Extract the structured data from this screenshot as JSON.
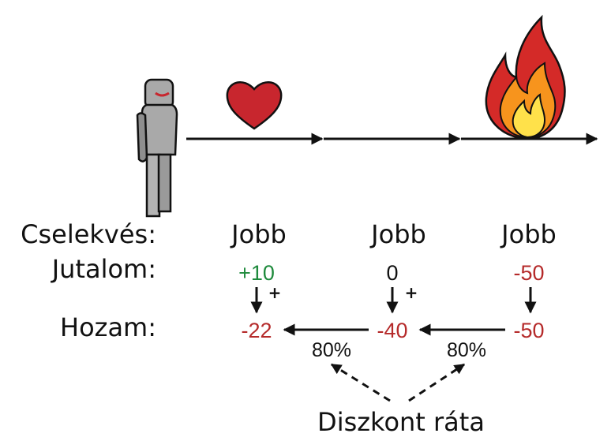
{
  "labels": {
    "action": "Cselekvés:",
    "reward": "Jutalom:",
    "return": "Hozam:"
  },
  "actions": [
    "Jobb",
    "Jobb",
    "Jobb"
  ],
  "rewards": [
    "+10",
    "0",
    "-50"
  ],
  "returns": [
    "-22",
    "-40",
    "-50"
  ],
  "plus_signs": [
    "+",
    "+"
  ],
  "discounts": [
    "80%",
    "80%"
  ],
  "discount_label": "Diszkont ráta",
  "icons": [
    "robot-icon",
    "heart-icon",
    "fire-icon"
  ],
  "colors": {
    "positive": "#1e8a3c",
    "negative": "#b52a2a",
    "neutral": "#111111",
    "heart": "#c8262e",
    "flame_outer": "#d42a28",
    "flame_mid": "#f7941d",
    "flame_inner": "#ffe14a"
  }
}
